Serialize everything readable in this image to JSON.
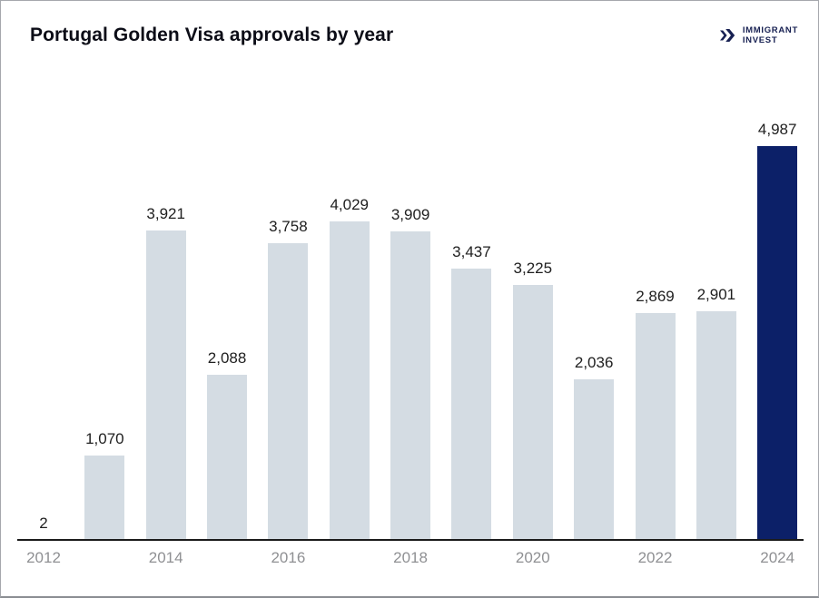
{
  "header": {
    "title": "Portugal Golden Visa approvals by year",
    "logo": {
      "line1": "IMMIGRANT",
      "line2": "INVEST",
      "icon": "double-chevron-right-icon",
      "color": "#172052"
    }
  },
  "chart_data": {
    "type": "bar",
    "title": "Portugal Golden Visa approvals by year",
    "categories": [
      2012,
      2013,
      2014,
      2015,
      2016,
      2017,
      2018,
      2019,
      2020,
      2021,
      2022,
      2023,
      2024
    ],
    "values": [
      2,
      1070,
      3921,
      2088,
      3758,
      4029,
      3909,
      3437,
      3225,
      2036,
      2869,
      2901,
      4987
    ],
    "value_labels": [
      "2",
      "1,070",
      "3,921",
      "2,088",
      "3,758",
      "4,029",
      "3,909",
      "3,437",
      "3,225",
      "2,036",
      "2,869",
      "2,901",
      "4,987"
    ],
    "x_tick_labels": [
      "2012",
      "2014",
      "2016",
      "2018",
      "2020",
      "2022",
      "2024"
    ],
    "x_tick_step": 2,
    "xlabel": "",
    "ylabel": "",
    "ylim": [
      0,
      4987
    ],
    "grid": false,
    "legend": "none",
    "highlight_index": 12,
    "colors": {
      "bar": "#d4dce3",
      "highlight_bar": "#0c2068",
      "axis_line": "#1b1b1b",
      "tick_label": "#8f9093",
      "value_label": "#202020"
    }
  }
}
